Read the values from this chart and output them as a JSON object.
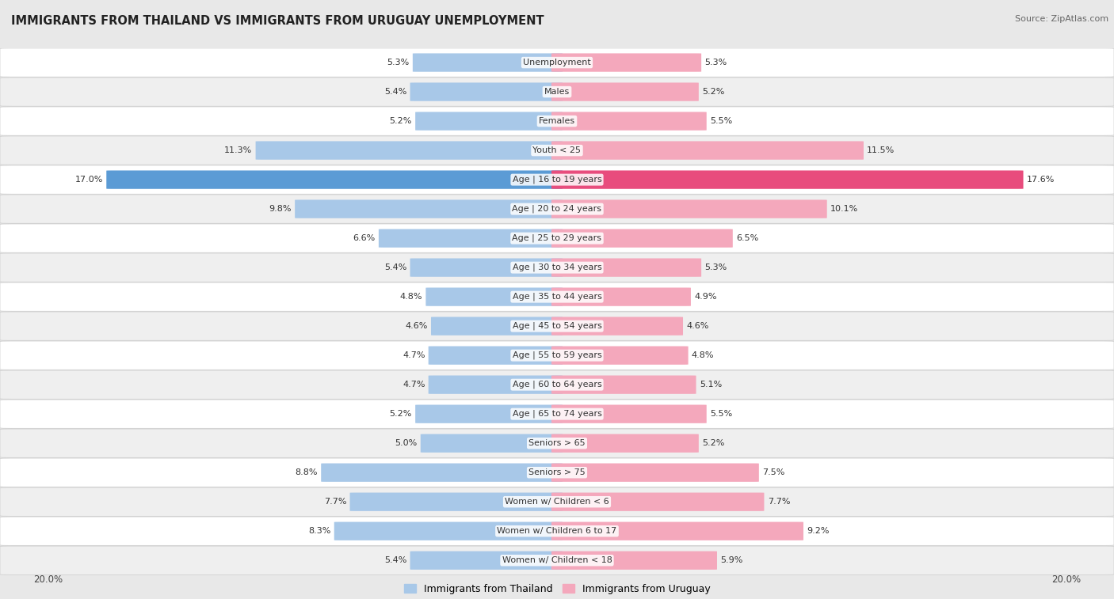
{
  "title": "IMMIGRANTS FROM THAILAND VS IMMIGRANTS FROM URUGUAY UNEMPLOYMENT",
  "source": "Source: ZipAtlas.com",
  "categories": [
    "Unemployment",
    "Males",
    "Females",
    "Youth < 25",
    "Age | 16 to 19 years",
    "Age | 20 to 24 years",
    "Age | 25 to 29 years",
    "Age | 30 to 34 years",
    "Age | 35 to 44 years",
    "Age | 45 to 54 years",
    "Age | 55 to 59 years",
    "Age | 60 to 64 years",
    "Age | 65 to 74 years",
    "Seniors > 65",
    "Seniors > 75",
    "Women w/ Children < 6",
    "Women w/ Children 6 to 17",
    "Women w/ Children < 18"
  ],
  "thailand_values": [
    5.3,
    5.4,
    5.2,
    11.3,
    17.0,
    9.8,
    6.6,
    5.4,
    4.8,
    4.6,
    4.7,
    4.7,
    5.2,
    5.0,
    8.8,
    7.7,
    8.3,
    5.4
  ],
  "uruguay_values": [
    5.3,
    5.2,
    5.5,
    11.5,
    17.6,
    10.1,
    6.5,
    5.3,
    4.9,
    4.6,
    4.8,
    5.1,
    5.5,
    5.2,
    7.5,
    7.7,
    9.2,
    5.9
  ],
  "thailand_color": "#a8c8e8",
  "uruguay_color": "#f4a8bc",
  "highlight_thailand_color": "#5b9bd5",
  "highlight_uruguay_color": "#e84c7d",
  "bg_color": "#e8e8e8",
  "row_even_color": "#ffffff",
  "row_odd_color": "#efefef",
  "max_value": 20.0,
  "legend_thailand": "Immigrants from Thailand",
  "legend_uruguay": "Immigrants from Uruguay"
}
